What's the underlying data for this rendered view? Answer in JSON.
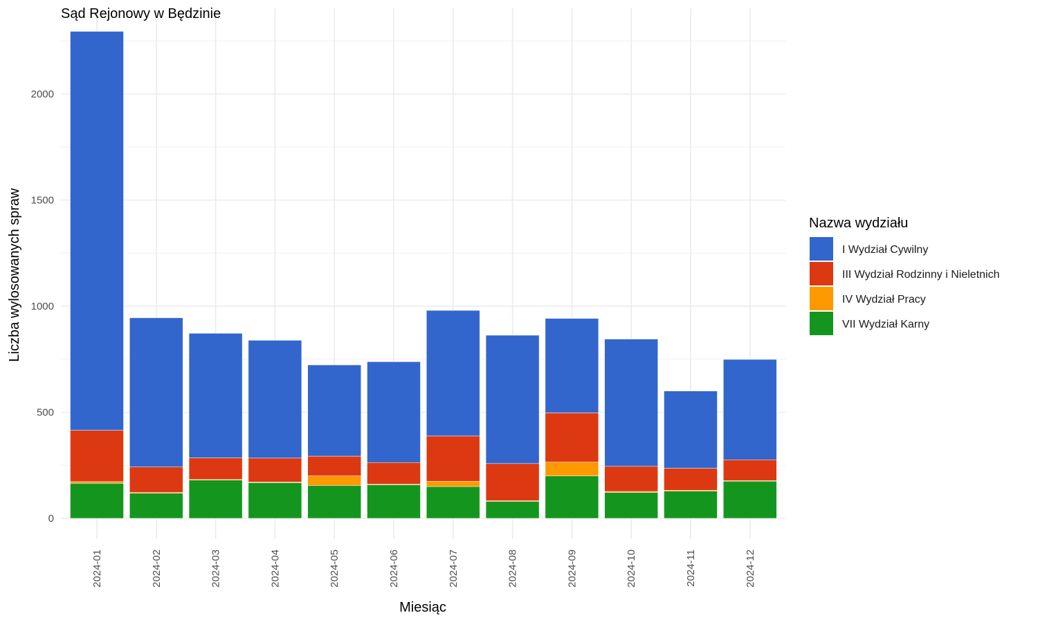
{
  "chart_data": {
    "type": "bar",
    "stacked": true,
    "title": "Sąd Rejonowy w Będzinie",
    "xlabel": "Miesiąc",
    "ylabel": "Liczba wylosowanych spraw",
    "ylim": [
      0,
      2400
    ],
    "yticks": [
      0,
      500,
      1000,
      1500,
      2000
    ],
    "grid": true,
    "legend_position": "right",
    "legend_title": "Nazwa wydziału",
    "categories": [
      "2024-01",
      "2024-02",
      "2024-03",
      "2024-04",
      "2024-05",
      "2024-06",
      "2024-07",
      "2024-08",
      "2024-09",
      "2024-10",
      "2024-11",
      "2024-12"
    ],
    "series": [
      {
        "name": "VII Wydział Karny",
        "color": "#14961e",
        "values": [
          165,
          118,
          180,
          168,
          155,
          158,
          150,
          80,
          200,
          122,
          128,
          175
        ]
      },
      {
        "name": "IV Wydział Pracy",
        "color": "#ff9900",
        "values": [
          8,
          4,
          3,
          3,
          45,
          3,
          25,
          3,
          65,
          5,
          4,
          3
        ]
      },
      {
        "name": "III Wydział Rodzinny i Nieletnich",
        "color": "#dc3912",
        "values": [
          242,
          120,
          102,
          113,
          93,
          102,
          213,
          175,
          232,
          118,
          104,
          98
        ]
      },
      {
        "name": "I Wydział Cywilny",
        "color": "#3366cc",
        "values": [
          1880,
          703,
          587,
          555,
          430,
          475,
          592,
          605,
          445,
          600,
          364,
          473
        ]
      }
    ]
  }
}
